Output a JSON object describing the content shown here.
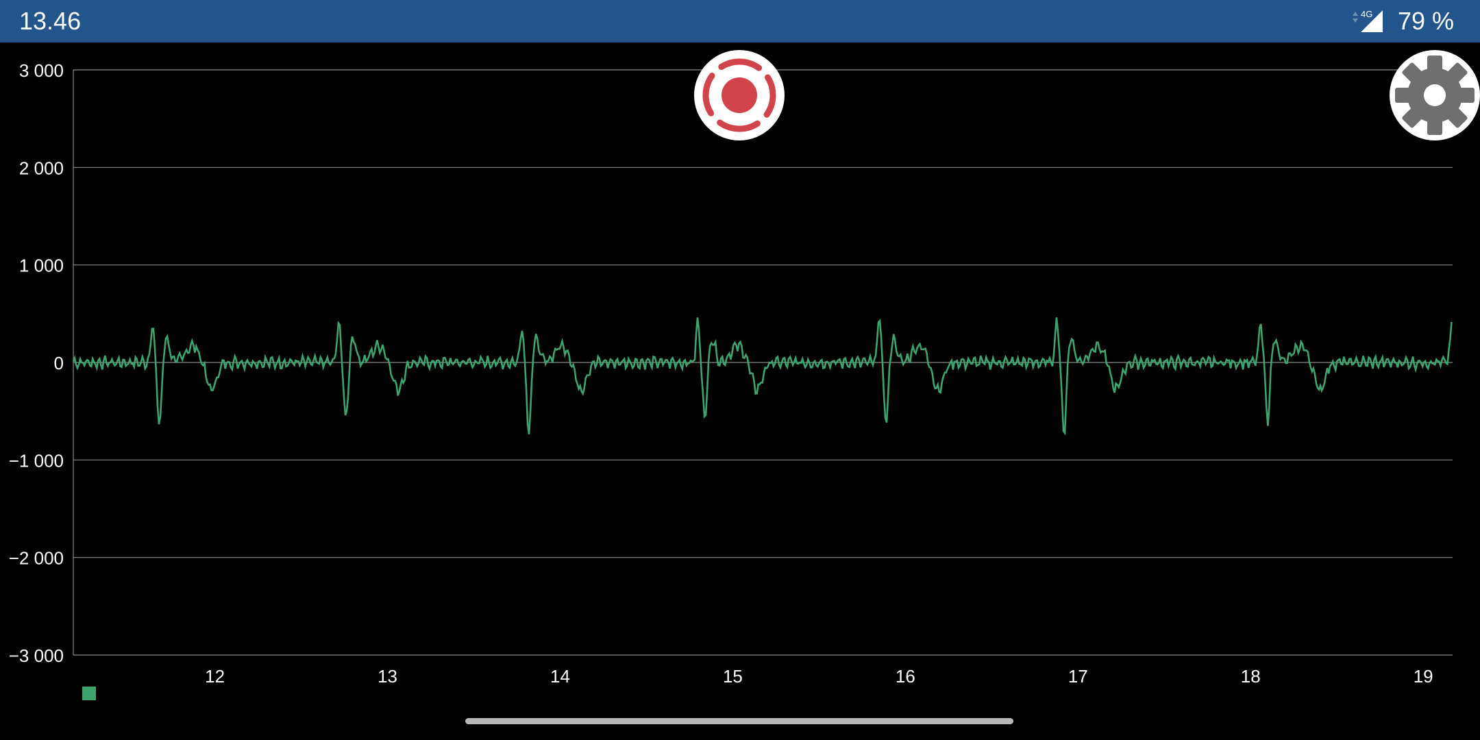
{
  "status_bar": {
    "time": "13.46",
    "network_label": "4G",
    "battery": "79 %",
    "background": "#22558c"
  },
  "buttons": {
    "record_icon": "record-icon",
    "settings_icon": "gear-icon"
  },
  "chart_data": {
    "type": "line",
    "title": "",
    "xlabel": "",
    "ylabel": "",
    "xlim": [
      11.18,
      19.17
    ],
    "ylim": [
      -3000,
      3000
    ],
    "y_ticks": [
      3000,
      2000,
      1000,
      0,
      -1000,
      -2000,
      -3000
    ],
    "y_tick_labels": [
      "3 000",
      "2 000",
      "1 000",
      "0",
      "−1 000",
      "−2 000",
      "−3 000"
    ],
    "x_ticks": [
      12,
      13,
      14,
      15,
      16,
      17,
      18,
      19
    ],
    "x_tick_labels": [
      "12",
      "13",
      "14",
      "15",
      "16",
      "17",
      "18",
      "19"
    ],
    "grid": true,
    "legend": "bottom-left",
    "series": [
      {
        "color": "#3ea36e",
        "beat_times": [
          11.65,
          12.73,
          13.79,
          14.81,
          15.86,
          16.89,
          18.07
        ],
        "beats": [
          {
            "r_peak": 400,
            "s_trough": -660
          },
          {
            "r_peak": 430,
            "s_trough": -600
          },
          {
            "r_peak": 370,
            "s_trough": -720
          },
          {
            "r_peak": 420,
            "s_trough": -590
          },
          {
            "r_peak": 470,
            "s_trough": -630
          },
          {
            "r_peak": 460,
            "s_trough": -740
          },
          {
            "r_peak": 410,
            "s_trough": -600
          }
        ],
        "t_wave_trough": -280,
        "end_value": 460,
        "noise_amplitude": 60
      }
    ]
  }
}
